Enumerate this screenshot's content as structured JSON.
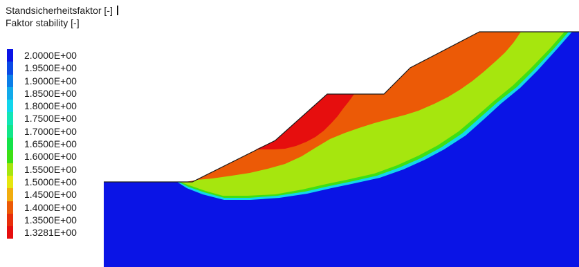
{
  "titles": {
    "line1": "Standsicherheitsfaktor [-]",
    "line2": "Faktor stability [-]"
  },
  "legend": [
    {
      "label": "2.0000E+00",
      "color": "#0a14e6"
    },
    {
      "label": "1.9500E+00",
      "color": "#0a4ae6"
    },
    {
      "label": "1.9000E+00",
      "color": "#0b7ee8"
    },
    {
      "label": "1.8500E+00",
      "color": "#11aaea"
    },
    {
      "label": "1.8000E+00",
      "color": "#12d6ec"
    },
    {
      "label": "1.7500E+00",
      "color": "#12e6b6"
    },
    {
      "label": "1.7000E+00",
      "color": "#12e68a"
    },
    {
      "label": "1.6500E+00",
      "color": "#14e24a"
    },
    {
      "label": "1.6000E+00",
      "color": "#3ee014"
    },
    {
      "label": "1.5500E+00",
      "color": "#a6e60e"
    },
    {
      "label": "1.5000E+00",
      "color": "#e6e60e"
    },
    {
      "label": "1.4500E+00",
      "color": "#f2ad0e"
    },
    {
      "label": "1.4000E+00",
      "color": "#ec5a06"
    },
    {
      "label": "1.3500E+00",
      "color": "#e82e0a"
    },
    {
      "label": "1.3281E+00",
      "color": "#e60e0e"
    }
  ],
  "plot_colors": {
    "base": "#0a14e6",
    "green": "#a6e60e",
    "orange": "#ec5a06",
    "red": "#e60e0e",
    "edge_cyan": "#12d6ec",
    "edge_green": "#3ee014",
    "outline": "#1a1a1a"
  }
}
